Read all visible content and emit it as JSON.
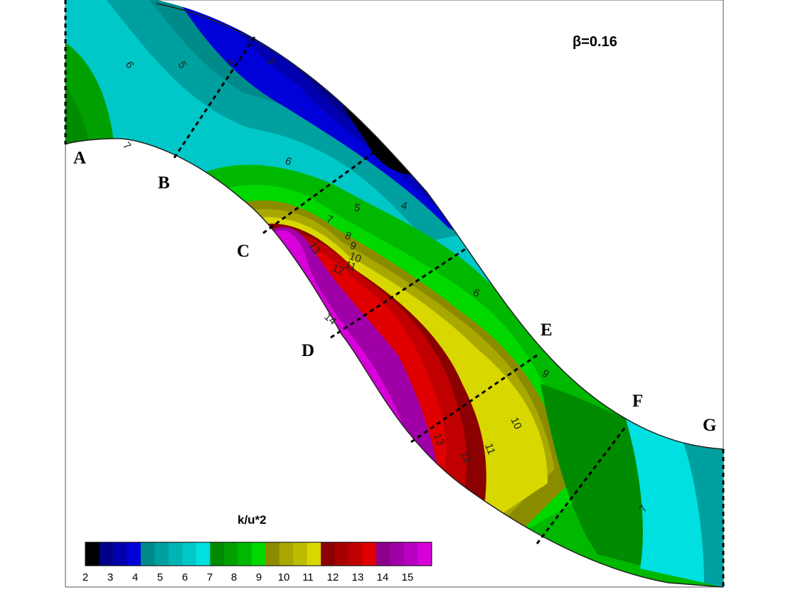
{
  "chart_data": {
    "type": "contour",
    "quantity_label": "k/u*2",
    "annotation": "β=0.16",
    "sections": [
      "A",
      "B",
      "C",
      "D",
      "E",
      "F",
      "G"
    ],
    "colorbar": {
      "ticks": [
        2,
        3,
        4,
        5,
        6,
        7,
        8,
        9,
        10,
        11,
        12,
        13,
        14,
        15
      ],
      "colors": [
        "#000000",
        "#00008b",
        "#0000b0",
        "#0000d8",
        "#008b8b",
        "#00a0a0",
        "#00b4b4",
        "#00c8c8",
        "#00e0e0",
        "#008b00",
        "#00a000",
        "#00b800",
        "#00d800",
        "#8b8b00",
        "#a8a800",
        "#bcbc00",
        "#d8d800",
        "#8b0000",
        "#a80000",
        "#c00000",
        "#e00000",
        "#8b008b",
        "#a000a8",
        "#b800c0",
        "#d800d8"
      ]
    },
    "contour_labels": [
      {
        "text": "6"
      },
      {
        "text": "5"
      },
      {
        "text": "4"
      },
      {
        "text": "3"
      },
      {
        "text": "7"
      },
      {
        "text": "6"
      },
      {
        "text": "5"
      },
      {
        "text": "4"
      },
      {
        "text": "7"
      },
      {
        "text": "8"
      },
      {
        "text": "9"
      },
      {
        "text": "10"
      },
      {
        "text": "11"
      },
      {
        "text": "12"
      },
      {
        "text": "13"
      },
      {
        "text": "14"
      },
      {
        "text": "6"
      },
      {
        "text": "9"
      },
      {
        "text": "10"
      },
      {
        "text": "11"
      },
      {
        "text": "12"
      },
      {
        "text": "13"
      },
      {
        "text": "7"
      }
    ]
  }
}
